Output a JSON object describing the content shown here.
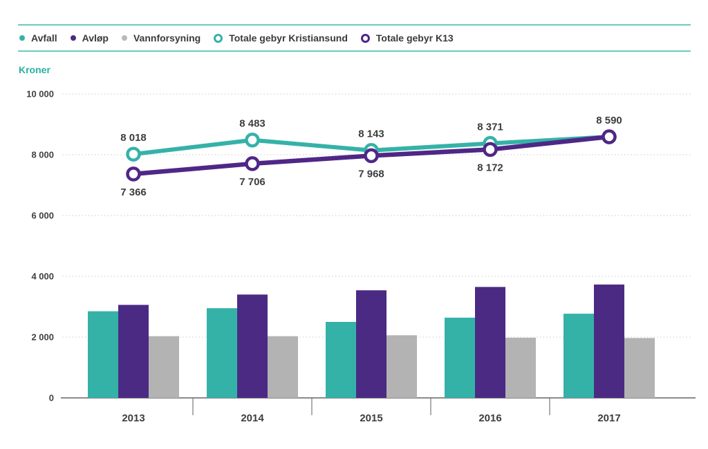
{
  "colors": {
    "teal": "#34b2a8",
    "teal_line": "#35b2a8",
    "purple": "#4b2a84",
    "purple_line": "#4f2786",
    "gray": "#b3b3b3",
    "rule_teal": "#6bcac2",
    "unit_text_teal": "#28b0a4",
    "grid": "#d4d4d4",
    "axis": "#8a8a8a",
    "text": "#3d3d3d"
  },
  "legend": {
    "items": [
      {
        "label": "Avfall",
        "marker": "dot",
        "color": "#34b2a8"
      },
      {
        "label": "Avløp",
        "marker": "dot",
        "color": "#4b2a84"
      },
      {
        "label": "Vannforsyning",
        "marker": "dot",
        "color": "#b8b8b8"
      },
      {
        "label": "Totale gebyr Kristiansund",
        "marker": "ring",
        "color": "#35b2a8"
      },
      {
        "label": "Totale gebyr K13",
        "marker": "ring",
        "color": "#4f2786"
      }
    ]
  },
  "chart_data": {
    "type": "bar+line",
    "ylabel": "Kroner",
    "categories": [
      "2013",
      "2014",
      "2015",
      "2016",
      "2017"
    ],
    "ylim": [
      0,
      10000
    ],
    "grid": "horizontal-dotted",
    "legend_position": "top",
    "y_ticks": [
      {
        "value": 0,
        "label": "0"
      },
      {
        "value": 2000,
        "label": "2 000"
      },
      {
        "value": 4000,
        "label": "4 000"
      },
      {
        "value": 6000,
        "label": "6 000"
      },
      {
        "value": 8000,
        "label": "8 000"
      },
      {
        "value": 10000,
        "label": "10 000"
      }
    ],
    "bar_series": [
      {
        "name": "Avfall",
        "color": "#34b2a8",
        "values": [
          2850,
          2950,
          2500,
          2640,
          2770
        ]
      },
      {
        "name": "Avløp",
        "color": "#4b2a84",
        "values": [
          3060,
          3400,
          3540,
          3650,
          3730
        ]
      },
      {
        "name": "Vannforsyning",
        "color": "#b3b3b3",
        "values": [
          2030,
          2030,
          2060,
          1980,
          1970
        ]
      }
    ],
    "line_series": [
      {
        "name": "Totale gebyr Kristiansund",
        "color": "#35b2a8",
        "width": 6,
        "values": [
          8018,
          8483,
          8143,
          8371,
          8590
        ],
        "labels": [
          "8 018",
          "8 483",
          "8 143",
          "8 371",
          "8 590"
        ],
        "label_side": [
          "above",
          "above",
          "above",
          "above",
          "above"
        ]
      },
      {
        "name": "Totale gebyr K13",
        "color": "#4f2786",
        "width": 6.5,
        "values": [
          7366,
          7706,
          7968,
          8172,
          8590
        ],
        "labels": [
          "7 366",
          "7 706",
          "7 968",
          "8 172",
          ""
        ],
        "label_side": [
          "below",
          "below",
          "below",
          "below",
          "none"
        ]
      }
    ]
  }
}
